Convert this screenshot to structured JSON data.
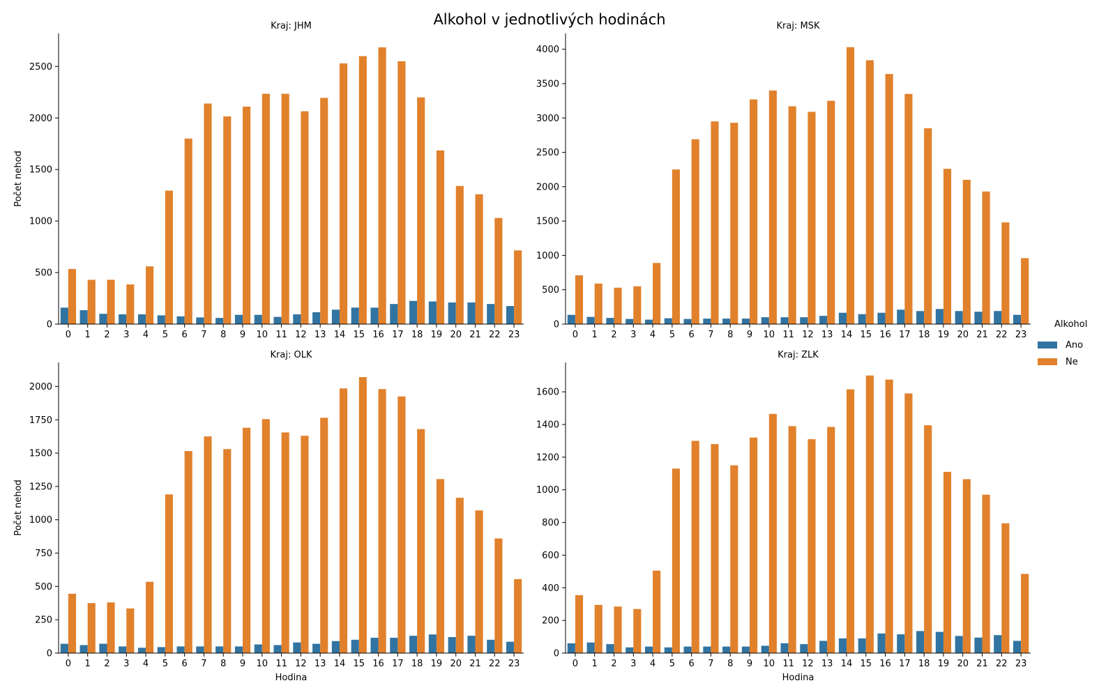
{
  "suptitle": "Alkohol v jednotlivých hodinách",
  "legend": {
    "title": "Alkohol",
    "items": [
      {
        "label": "Ano",
        "color": "#3274a1"
      },
      {
        "label": "Ne",
        "color": "#e1812c"
      }
    ]
  },
  "chart_data": [
    {
      "type": "bar",
      "title": "Kraj: JHM",
      "xlabel": "",
      "ylabel": "Počet nehod",
      "ylim": [
        0,
        2820
      ],
      "yticks": [
        0,
        500,
        1000,
        1500,
        2000,
        2500
      ],
      "categories": [
        "0",
        "1",
        "2",
        "3",
        "4",
        "5",
        "6",
        "7",
        "8",
        "9",
        "10",
        "11",
        "12",
        "13",
        "14",
        "15",
        "16",
        "17",
        "18",
        "19",
        "20",
        "21",
        "22",
        "23"
      ],
      "series": [
        {
          "name": "Ano",
          "values": [
            160,
            135,
            100,
            95,
            95,
            85,
            75,
            65,
            60,
            90,
            90,
            70,
            95,
            115,
            140,
            160,
            160,
            195,
            225,
            220,
            210,
            210,
            195,
            175
          ]
        },
        {
          "name": "Ne",
          "values": [
            535,
            430,
            430,
            385,
            560,
            1295,
            1800,
            2140,
            2015,
            2110,
            2235,
            2235,
            2065,
            2195,
            2530,
            2600,
            2685,
            2550,
            2200,
            1685,
            1340,
            1260,
            1030,
            715
          ]
        }
      ]
    },
    {
      "type": "bar",
      "title": "Kraj: MSK",
      "xlabel": "",
      "ylabel": "",
      "ylim": [
        0,
        4230
      ],
      "yticks": [
        0,
        500,
        1000,
        1500,
        2000,
        2500,
        3000,
        3500,
        4000
      ],
      "categories": [
        "0",
        "1",
        "2",
        "3",
        "4",
        "5",
        "6",
        "7",
        "8",
        "9",
        "10",
        "11",
        "12",
        "13",
        "14",
        "15",
        "16",
        "17",
        "18",
        "19",
        "20",
        "21",
        "22",
        "23"
      ],
      "series": [
        {
          "name": "Ano",
          "values": [
            135,
            105,
            90,
            75,
            65,
            85,
            75,
            80,
            80,
            80,
            100,
            100,
            100,
            120,
            165,
            145,
            165,
            210,
            190,
            220,
            190,
            180,
            190,
            135
          ]
        },
        {
          "name": "Ne",
          "values": [
            710,
            590,
            530,
            550,
            890,
            2250,
            2690,
            2950,
            2930,
            3270,
            3400,
            3170,
            3090,
            3250,
            4030,
            3840,
            3640,
            3350,
            2850,
            2260,
            2100,
            1930,
            1480,
            960
          ]
        }
      ]
    },
    {
      "type": "bar",
      "title": "Kraj: OLK",
      "xlabel": "Hodina",
      "ylabel": "Počet nehod",
      "ylim": [
        0,
        2180
      ],
      "yticks": [
        0,
        250,
        500,
        750,
        1000,
        1250,
        1500,
        1750,
        2000
      ],
      "categories": [
        "0",
        "1",
        "2",
        "3",
        "4",
        "5",
        "6",
        "7",
        "8",
        "9",
        "10",
        "11",
        "12",
        "13",
        "14",
        "15",
        "16",
        "17",
        "18",
        "19",
        "20",
        "21",
        "22",
        "23"
      ],
      "series": [
        {
          "name": "Ano",
          "values": [
            70,
            60,
            70,
            50,
            40,
            45,
            50,
            50,
            50,
            50,
            65,
            60,
            80,
            70,
            90,
            100,
            115,
            115,
            130,
            140,
            120,
            130,
            100,
            85
          ]
        },
        {
          "name": "Ne",
          "values": [
            445,
            375,
            380,
            335,
            535,
            1190,
            1515,
            1625,
            1530,
            1690,
            1755,
            1655,
            1630,
            1765,
            1985,
            2070,
            1980,
            1925,
            1680,
            1305,
            1165,
            1070,
            860,
            555
          ]
        }
      ]
    },
    {
      "type": "bar",
      "title": "Kraj: ZLK",
      "xlabel": "Hodina",
      "ylabel": "",
      "ylim": [
        0,
        1780
      ],
      "yticks": [
        0,
        200,
        400,
        600,
        800,
        1000,
        1200,
        1400,
        1600
      ],
      "categories": [
        "0",
        "1",
        "2",
        "3",
        "4",
        "5",
        "6",
        "7",
        "8",
        "9",
        "10",
        "11",
        "12",
        "13",
        "14",
        "15",
        "16",
        "17",
        "18",
        "19",
        "20",
        "21",
        "22",
        "23"
      ],
      "series": [
        {
          "name": "Ano",
          "values": [
            60,
            65,
            55,
            35,
            40,
            35,
            40,
            40,
            40,
            40,
            45,
            60,
            55,
            75,
            90,
            90,
            120,
            115,
            135,
            130,
            105,
            95,
            110,
            75
          ]
        },
        {
          "name": "Ne",
          "values": [
            355,
            295,
            285,
            270,
            505,
            1130,
            1300,
            1280,
            1150,
            1320,
            1465,
            1390,
            1310,
            1385,
            1615,
            1700,
            1675,
            1590,
            1395,
            1110,
            1065,
            970,
            795,
            485
          ]
        }
      ]
    }
  ]
}
